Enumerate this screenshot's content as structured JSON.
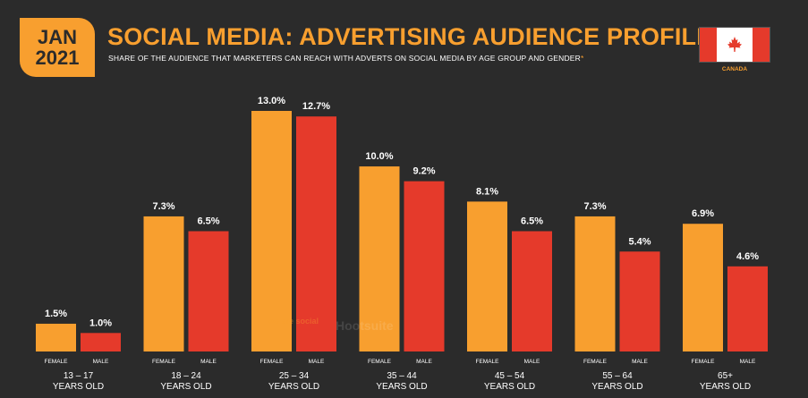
{
  "header": {
    "date_line1": "JAN",
    "date_line2": "2021",
    "title": "SOCIAL MEDIA: ADVERTISING AUDIENCE PROFILE",
    "subtitle": "SHARE OF THE AUDIENCE THAT MARKETERS CAN REACH WITH ADVERTS ON SOCIAL MEDIA BY AGE GROUP AND GENDER",
    "subtitle_marker": "*",
    "country": "CANADA"
  },
  "watermark": {
    "brand1": "we are social",
    "brand2": "Hootsuite"
  },
  "colors": {
    "female": "#f89f2f",
    "male": "#e53a2b",
    "accent": "#f89f2f",
    "background": "#2b2b2b"
  },
  "chart_data": {
    "type": "bar",
    "categories": [
      "13 – 17 YEARS OLD",
      "18 – 24 YEARS OLD",
      "25 – 34 YEARS OLD",
      "35 – 44 YEARS OLD",
      "45 – 54 YEARS OLD",
      "55 – 64 YEARS OLD",
      "65+ YEARS OLD"
    ],
    "category_lines": [
      [
        "13 – 17",
        "YEARS OLD"
      ],
      [
        "18 – 24",
        "YEARS OLD"
      ],
      [
        "25 – 34",
        "YEARS OLD"
      ],
      [
        "35 – 44",
        "YEARS OLD"
      ],
      [
        "45 – 54",
        "YEARS OLD"
      ],
      [
        "55 – 64",
        "YEARS OLD"
      ],
      [
        "65+",
        "YEARS OLD"
      ]
    ],
    "series": [
      {
        "name": "FEMALE",
        "values": [
          1.5,
          7.3,
          13.0,
          10.0,
          8.1,
          7.3,
          6.9
        ],
        "labels": [
          "1.5%",
          "7.3%",
          "13.0%",
          "10.0%",
          "8.1%",
          "7.3%",
          "6.9%"
        ]
      },
      {
        "name": "MALE",
        "values": [
          1.0,
          6.5,
          12.7,
          9.2,
          6.5,
          5.4,
          4.6
        ],
        "labels": [
          "1.0%",
          "6.5%",
          "12.7%",
          "9.2%",
          "6.5%",
          "5.4%",
          "4.6%"
        ]
      }
    ],
    "ylim": [
      0,
      13
    ],
    "grid": false,
    "legend": "none"
  }
}
